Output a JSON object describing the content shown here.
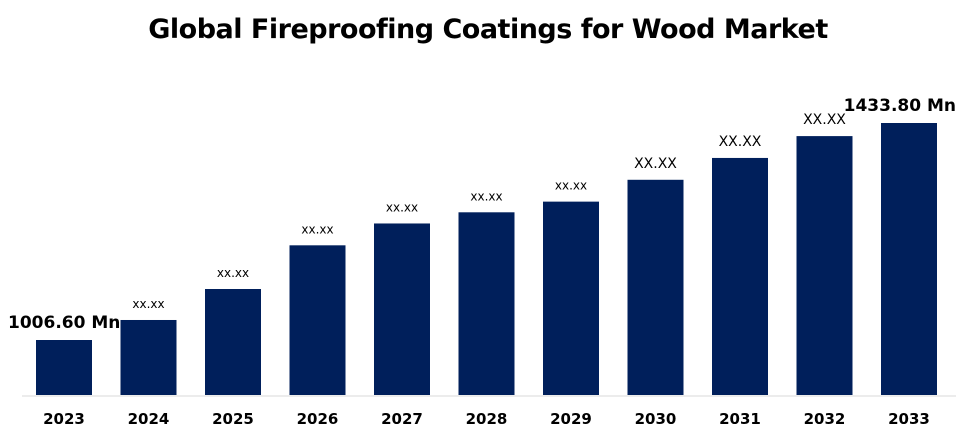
{
  "chart_data": {
    "type": "bar",
    "title": "Global Fireproofing Coatings for Wood Market",
    "xlabel": "",
    "ylabel": "",
    "categories": [
      "2023",
      "2024",
      "2025",
      "2026",
      "2027",
      "2028",
      "2029",
      "2030",
      "2031",
      "2032",
      "2033"
    ],
    "values": [
      1006.6,
      1046,
      1107,
      1193,
      1236,
      1258,
      1279,
      1322,
      1365,
      1408,
      1433.8
    ],
    "data_labels": [
      "1006.60 Mn",
      "xx.xx",
      "xx.xx",
      "xx.xx",
      "xx.xx",
      "xx.xx",
      "xx.xx",
      "XX.XX",
      "XX.XX",
      "XX.XX",
      "1433.80 Mn"
    ],
    "unit": "Mn",
    "bar_color": "#001f5b",
    "grid": false,
    "legend": "none"
  }
}
